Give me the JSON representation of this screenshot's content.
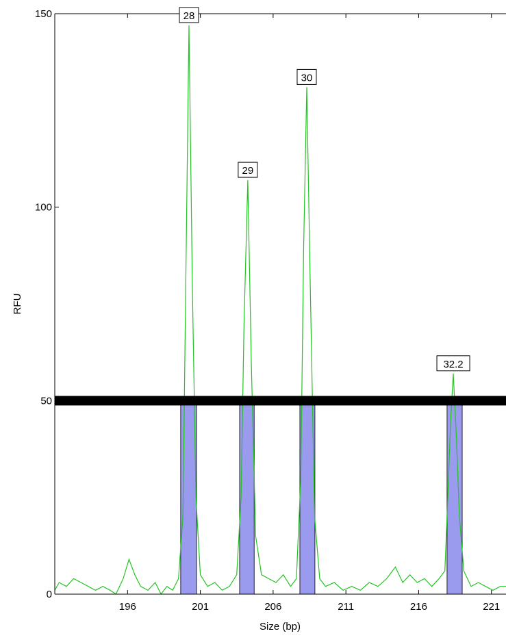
{
  "chart_data": {
    "type": "electropherogram",
    "xlabel": "Size (bp)",
    "ylabel": "RFU",
    "xlim": [
      191,
      222
    ],
    "ylim": [
      0,
      150
    ],
    "xticks": [
      196,
      201,
      206,
      211,
      216,
      221
    ],
    "yticks": [
      0,
      50,
      100,
      150
    ],
    "threshold": 50,
    "line_color": "#22c322",
    "bin_color": "#9a9aee",
    "x": [
      191.0,
      191.3,
      191.8,
      192.3,
      192.8,
      193.3,
      193.8,
      194.3,
      194.8,
      195.2,
      195.7,
      196.1,
      196.5,
      196.9,
      197.4,
      197.9,
      198.3,
      198.7,
      199.1,
      199.5,
      199.8,
      200.0,
      200.22,
      200.45,
      200.7,
      201.0,
      201.5,
      202.0,
      202.5,
      203.0,
      203.5,
      203.8,
      204.0,
      204.26,
      204.5,
      204.8,
      205.2,
      205.7,
      206.2,
      206.7,
      207.2,
      207.6,
      207.9,
      208.1,
      208.31,
      208.55,
      208.85,
      209.2,
      209.6,
      210.2,
      210.8,
      211.4,
      212.0,
      212.6,
      213.2,
      213.8,
      214.4,
      214.9,
      215.4,
      215.9,
      216.4,
      216.9,
      217.4,
      217.8,
      218.0,
      218.2,
      218.38,
      218.6,
      218.8,
      219.1,
      219.6,
      220.1,
      220.6,
      221.1,
      221.6,
      222.0
    ],
    "y": [
      1,
      3,
      2,
      4,
      3,
      2,
      1,
      2,
      1,
      0,
      4,
      9,
      5,
      2,
      1,
      3,
      0,
      2,
      1,
      4,
      20,
      80,
      147,
      80,
      25,
      5,
      2,
      3,
      1,
      2,
      5,
      25,
      70,
      107,
      60,
      15,
      5,
      4,
      3,
      5,
      2,
      4,
      30,
      90,
      131,
      80,
      20,
      4,
      2,
      3,
      1,
      2,
      1,
      3,
      2,
      4,
      7,
      3,
      5,
      3,
      4,
      2,
      4,
      6,
      25,
      45,
      57,
      40,
      20,
      6,
      2,
      3,
      2,
      1,
      2,
      2
    ],
    "bins": [
      [
        199.65,
        200.74
      ],
      [
        203.7,
        204.7
      ],
      [
        207.84,
        208.87
      ],
      [
        217.95,
        218.99
      ]
    ],
    "peaks": [
      {
        "label": "28",
        "x": 200.22,
        "height": 147
      },
      {
        "label": "29",
        "x": 204.26,
        "height": 107
      },
      {
        "label": "30",
        "x": 208.31,
        "height": 131
      },
      {
        "label": "32.2",
        "x": 218.38,
        "height": 57
      }
    ]
  }
}
